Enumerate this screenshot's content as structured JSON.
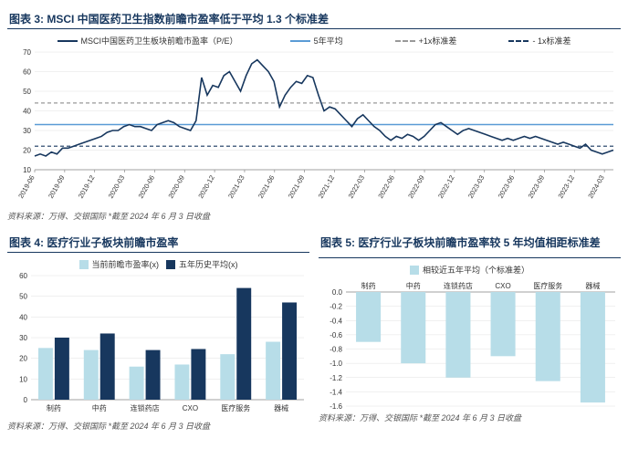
{
  "chart3": {
    "title": "图表 3: MSCI 中国医药卫生指数前瞻市盈率低于平均 1.3 个标准差",
    "source": "资料来源：万得、交银国际  *截至 2024 年 6 月 3 日收盘",
    "legend": [
      {
        "label": "MSCI中国医药卫生板块前瞻市盈率（P/E）",
        "color": "#17375e",
        "style": "solid"
      },
      {
        "label": "5年平均",
        "color": "#5a9bd5",
        "style": "solid"
      },
      {
        "label": "+1x标准差",
        "color": "#999999",
        "style": "dash"
      },
      {
        "label": "- 1x标准差",
        "color": "#17375e",
        "style": "dash"
      }
    ],
    "ylim": [
      10,
      70
    ],
    "ytick_step": 10,
    "xlabels": [
      "2019-06",
      "2019-09",
      "2019-12",
      "2020-03",
      "2020-06",
      "2020-09",
      "2020-12",
      "2021-03",
      "2021-06",
      "2021-09",
      "2021-12",
      "2022-03",
      "2022-06",
      "2022-09",
      "2022-12",
      "2023-03",
      "2023-06",
      "2023-09",
      "2023-12",
      "2024-03"
    ],
    "mean_line": 33,
    "plus_sd_line": 44,
    "minus_sd_line": 22,
    "series_y": [
      17,
      18,
      17,
      19,
      18,
      21,
      21,
      22,
      23,
      24,
      25,
      26,
      27,
      29,
      30,
      30,
      32,
      33,
      32,
      32,
      31,
      30,
      33,
      34,
      35,
      34,
      32,
      31,
      30,
      35,
      57,
      48,
      53,
      52,
      58,
      60,
      55,
      50,
      58,
      64,
      66,
      63,
      60,
      55,
      42,
      48,
      52,
      55,
      54,
      58,
      57,
      48,
      40,
      42,
      41,
      38,
      35,
      32,
      36,
      38,
      35,
      32,
      30,
      27,
      25,
      27,
      26,
      28,
      27,
      25,
      27,
      30,
      33,
      34,
      32,
      30,
      28,
      30,
      31,
      30,
      29,
      28,
      27,
      26,
      25,
      26,
      25,
      26,
      27,
      26,
      27,
      26,
      25,
      24,
      23,
      24,
      23,
      22,
      21,
      23,
      20,
      19,
      18,
      19,
      20
    ]
  },
  "chart4": {
    "title": "图表 4: 医疗行业子板块前瞻市盈率",
    "source": "资料来源：万得、交银国际  *截至 2024 年 6 月 3 日收盘",
    "legend": [
      {
        "label": "当前前瞻市盈率(x)",
        "color": "#b7dde8"
      },
      {
        "label": "五年历史平均(x)",
        "color": "#17375e"
      }
    ],
    "ylim": [
      0,
      60
    ],
    "ytick_step": 10,
    "categories": [
      "制药",
      "中药",
      "连锁药店",
      "CXO",
      "医疗服务",
      "器械"
    ],
    "current": [
      25,
      24,
      16,
      17,
      22,
      28
    ],
    "avg": [
      30,
      32,
      24,
      24.5,
      54,
      47
    ]
  },
  "chart5": {
    "title": "图表 5: 医疗行业子板块前瞻市盈率较 5 年均值相距标准差",
    "source": "资料来源：万得、交银国际  *截至 2024 年 6 月 3 日收盘",
    "legend": [
      {
        "label": "相较近五年平均（个标准差）",
        "color": "#b7dde8"
      }
    ],
    "ylim": [
      -1.6,
      0.0
    ],
    "ytick_step": 0.2,
    "categories": [
      "制药",
      "中药",
      "连锁药店",
      "CXO",
      "医疗服务",
      "器械"
    ],
    "values": [
      -0.7,
      -1.0,
      -1.2,
      -0.9,
      -1.25,
      -1.55
    ]
  }
}
